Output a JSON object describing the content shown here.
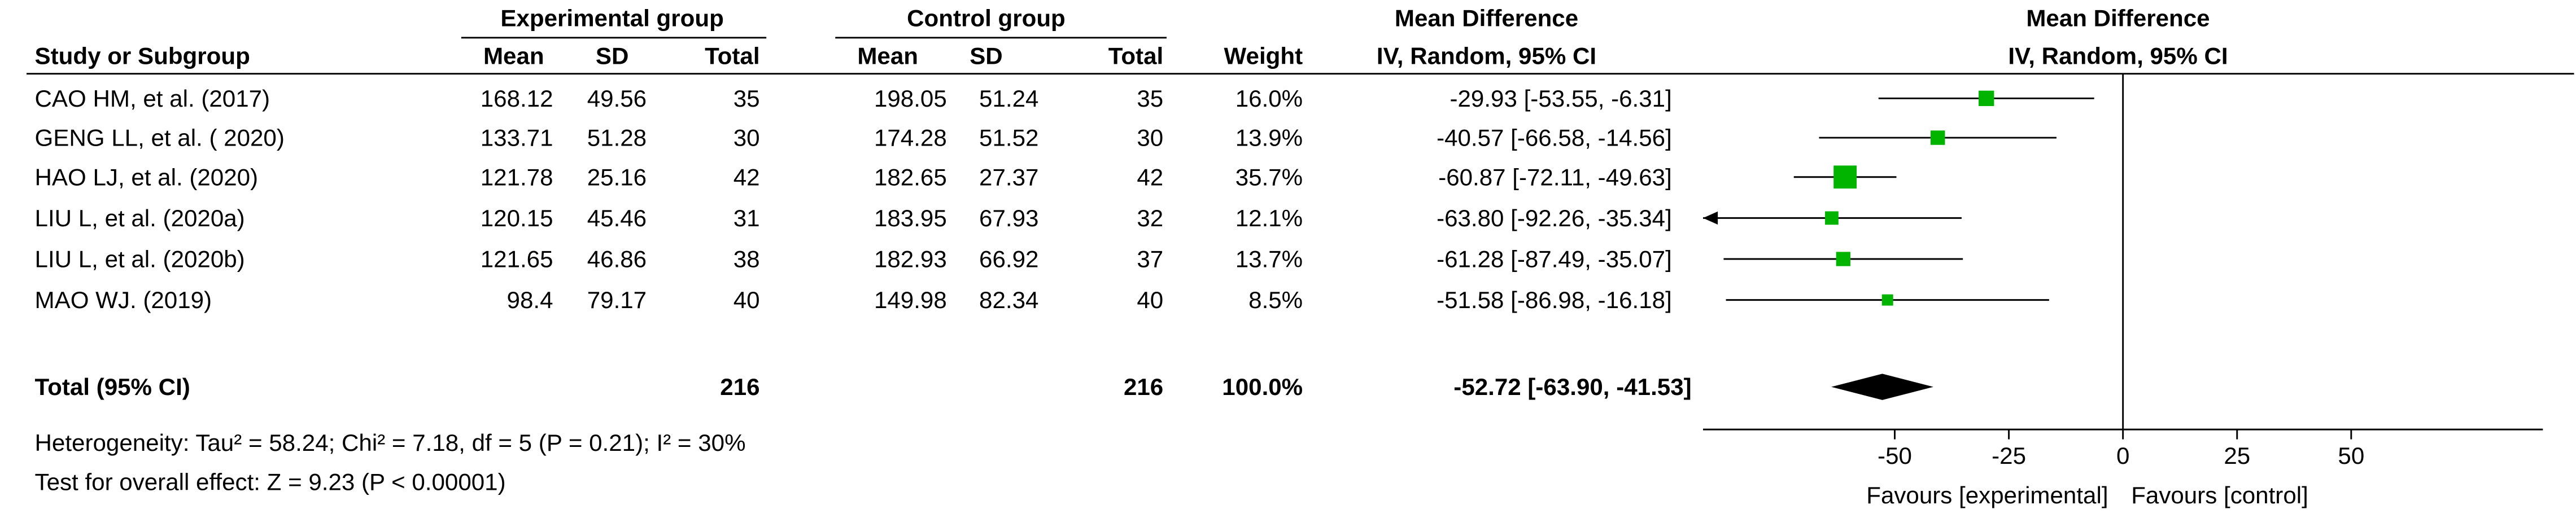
{
  "chart_data": {
    "type": "forest",
    "group_headers": [
      "Experimental group",
      "Control group",
      "Mean Difference",
      "Mean Difference"
    ],
    "column_headers": [
      "Study or Subgroup",
      "Mean",
      "SD",
      "Total",
      "Mean",
      "SD",
      "Total",
      "Weight",
      "IV, Random, 95% CI",
      "IV, Random, 95% CI"
    ],
    "studies": [
      {
        "name": "CAO HM, et al. (2017)",
        "exp_mean": 168.12,
        "exp_sd": 49.56,
        "exp_total": 35,
        "ctl_mean": 198.05,
        "ctl_sd": 51.24,
        "ctl_total": 35,
        "weight": 16.0,
        "weight_label": "16.0%",
        "md": -29.93,
        "ci_low": -53.55,
        "ci_high": -6.31,
        "ci_label": "-29.93 [-53.55, -6.31]"
      },
      {
        "name": "GENG LL, et al. ( 2020)",
        "exp_mean": 133.71,
        "exp_sd": 51.28,
        "exp_total": 30,
        "ctl_mean": 174.28,
        "ctl_sd": 51.52,
        "ctl_total": 30,
        "weight": 13.9,
        "weight_label": "13.9%",
        "md": -40.57,
        "ci_low": -66.58,
        "ci_high": -14.56,
        "ci_label": "-40.57 [-66.58, -14.56]"
      },
      {
        "name": "HAO LJ, et al. (2020)",
        "exp_mean": 121.78,
        "exp_sd": 25.16,
        "exp_total": 42,
        "ctl_mean": 182.65,
        "ctl_sd": 27.37,
        "ctl_total": 42,
        "weight": 35.7,
        "weight_label": "35.7%",
        "md": -60.87,
        "ci_low": -72.11,
        "ci_high": -49.63,
        "ci_label": "-60.87 [-72.11, -49.63]"
      },
      {
        "name": "LIU L, et al. (2020a)",
        "exp_mean": 120.15,
        "exp_sd": 45.46,
        "exp_total": 31,
        "ctl_mean": 183.95,
        "ctl_sd": 67.93,
        "ctl_total": 32,
        "weight": 12.1,
        "weight_label": "12.1%",
        "md": -63.8,
        "ci_low": -92.26,
        "ci_high": -35.34,
        "ci_label": "-63.80 [-92.26, -35.34]"
      },
      {
        "name": "LIU L, et al. (2020b)",
        "exp_mean": 121.65,
        "exp_sd": 46.86,
        "exp_total": 38,
        "ctl_mean": 182.93,
        "ctl_sd": 66.92,
        "ctl_total": 37,
        "weight": 13.7,
        "weight_label": "13.7%",
        "md": -61.28,
        "ci_low": -87.49,
        "ci_high": -35.07,
        "ci_label": "-61.28 [-87.49, -35.07]"
      },
      {
        "name": "MAO WJ. (2019)",
        "exp_mean": 98.4,
        "exp_sd": 79.17,
        "exp_total": 40,
        "ctl_mean": 149.98,
        "ctl_sd": 82.34,
        "ctl_total": 40,
        "weight": 8.5,
        "weight_label": "8.5%",
        "md": -51.58,
        "ci_low": -86.98,
        "ci_high": -16.18,
        "ci_label": "-51.58 [-86.98, -16.18]"
      }
    ],
    "total": {
      "name": "Total (95% CI)",
      "exp_total": 216,
      "ctl_total": 216,
      "weight_label": "100.0%",
      "md": -52.72,
      "ci_low": -63.9,
      "ci_high": -41.53,
      "ci_label": "-52.72 [-63.90, -41.53]"
    },
    "heterogeneity": "Heterogeneity: Tau² = 58.24; Chi² = 7.18, df = 5 (P = 0.21); I² = 30%",
    "overall_effect": "Test for overall effect: Z = 9.23 (P < 0.00001)",
    "xlim": [
      -92,
      92
    ],
    "xticks": [
      -50,
      -25,
      0,
      25,
      50
    ],
    "x_labels": [
      "Favours [experimental]",
      "Favours [control]"
    ],
    "marker_color": "#00b400"
  }
}
